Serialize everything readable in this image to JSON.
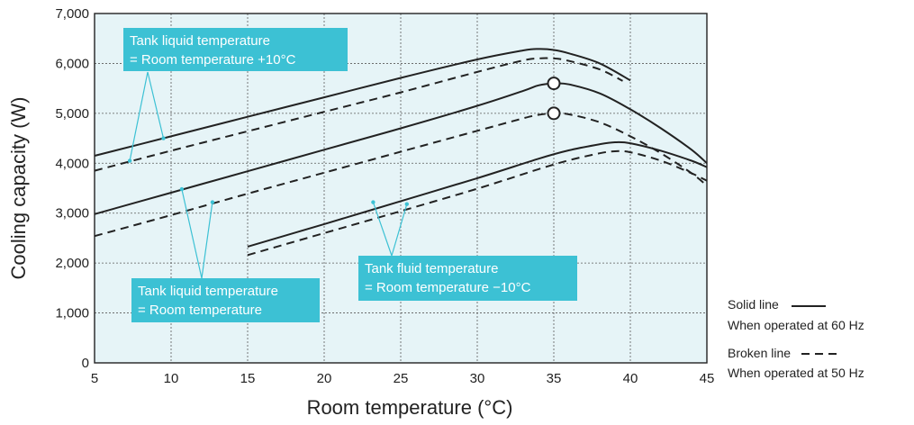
{
  "chart_data": {
    "type": "line",
    "xlabel": "Room temperature (°C)",
    "ylabel": "Cooling capacity (W)",
    "xlim": [
      5,
      45
    ],
    "ylim": [
      0,
      7000
    ],
    "x_ticks": [
      5,
      10,
      15,
      20,
      25,
      30,
      35,
      40,
      45
    ],
    "x_tick_labels": [
      "5",
      "10",
      "15",
      "20",
      "25",
      "30",
      "35",
      "40",
      "45"
    ],
    "y_ticks": [
      0,
      1000,
      2000,
      3000,
      4000,
      5000,
      6000,
      7000
    ],
    "y_tick_labels": [
      "0",
      "1,000",
      "2,000",
      "3,000",
      "4,000",
      "5,000",
      "6,000",
      "7,000"
    ],
    "grid": true,
    "colors": {
      "plot_background": "#e6f4f7",
      "grid": "#5a5a5a",
      "annotation_box": "#3cc1d4",
      "line": "#222222"
    },
    "series": [
      {
        "style": "solid",
        "x": [
          5,
          10,
          15,
          20,
          25,
          30,
          33,
          34,
          35,
          36,
          38,
          40
        ],
        "y": [
          4150,
          4540,
          4930,
          5320,
          5710,
          6080,
          6260,
          6290,
          6270,
          6200,
          6000,
          5660
        ]
      },
      {
        "style": "dashed",
        "x": [
          5,
          10,
          15,
          20,
          25,
          30,
          33,
          34,
          35,
          36,
          38,
          39.5
        ],
        "y": [
          3850,
          4250,
          4640,
          5030,
          5420,
          5830,
          6060,
          6100,
          6100,
          6050,
          5880,
          5650
        ]
      },
      {
        "style": "solid",
        "x": [
          5,
          10,
          15,
          20,
          25,
          30,
          33,
          34,
          35,
          36,
          38,
          40,
          42,
          44,
          45
        ],
        "y": [
          2980,
          3410,
          3840,
          4270,
          4700,
          5150,
          5450,
          5560,
          5600,
          5580,
          5400,
          5080,
          4700,
          4270,
          4000
        ]
      },
      {
        "style": "dashed",
        "x": [
          5,
          10,
          15,
          20,
          25,
          30,
          33,
          34,
          35,
          36,
          38,
          40,
          42,
          44,
          45
        ],
        "y": [
          2540,
          2960,
          3390,
          3810,
          4230,
          4650,
          4900,
          4970,
          5000,
          4980,
          4820,
          4540,
          4200,
          3800,
          3550
        ]
      },
      {
        "style": "solid",
        "x": [
          15,
          20,
          25,
          30,
          34,
          36,
          38,
          39,
          40,
          42,
          44,
          45
        ],
        "y": [
          2330,
          2780,
          3240,
          3700,
          4090,
          4260,
          4380,
          4420,
          4400,
          4250,
          4050,
          3920
        ]
      },
      {
        "style": "dashed",
        "x": [
          15,
          20,
          25,
          30,
          34,
          36,
          38,
          39,
          40,
          42,
          44,
          45
        ],
        "y": [
          2160,
          2600,
          3040,
          3490,
          3880,
          4060,
          4200,
          4240,
          4220,
          4050,
          3800,
          3650
        ]
      }
    ],
    "markers": [
      {
        "x": 35,
        "y": 5600
      },
      {
        "x": 35,
        "y": 5000
      }
    ],
    "annotations": [
      {
        "lines": [
          "Tank liquid temperature",
          "= Room temperature +10°C"
        ],
        "targets": [
          [
            7.3,
            4050
          ],
          [
            9.5,
            4500
          ]
        ]
      },
      {
        "lines": [
          "Tank liquid temperature",
          "= Room temperature"
        ],
        "targets": [
          [
            10.7,
            3480
          ],
          [
            12.7,
            3220
          ]
        ]
      },
      {
        "lines": [
          "Tank fluid temperature",
          "= Room temperature −10°C"
        ],
        "targets": [
          [
            23.2,
            3220
          ],
          [
            25.4,
            3180
          ]
        ]
      }
    ],
    "legend": {
      "position": "right",
      "entries": [
        {
          "style": "solid",
          "label_top": "Solid line",
          "label_bottom": "When operated at 60 Hz"
        },
        {
          "style": "dashed",
          "label_top": "Broken line",
          "label_bottom": "When operated at 50 Hz"
        }
      ]
    }
  }
}
